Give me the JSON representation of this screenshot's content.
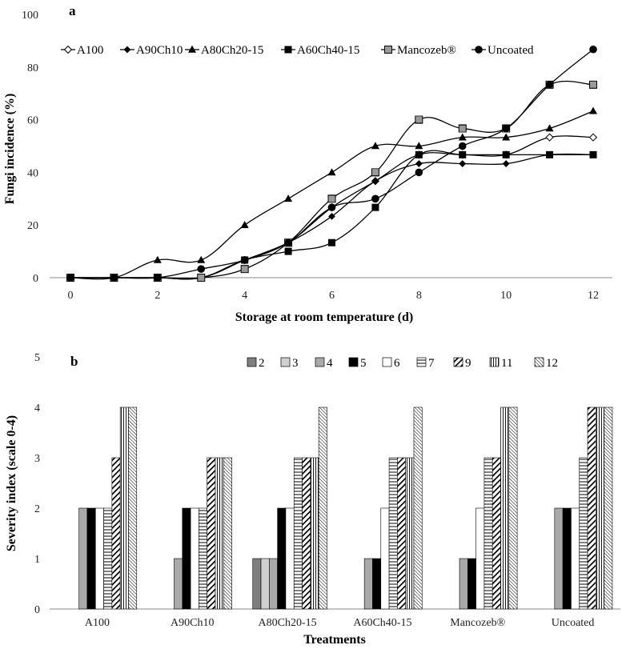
{
  "chart_data": [
    {
      "panel": "a",
      "type": "line",
      "xlabel": "Storage at room temperature (d)",
      "ylabel": "Fungi incidence (%)",
      "xlim": [
        0,
        12
      ],
      "ylim": [
        0,
        100
      ],
      "xticks": [
        0,
        2,
        4,
        6,
        8,
        10,
        12
      ],
      "yticks": [
        0,
        20,
        40,
        60,
        80,
        100
      ],
      "legend_position": "top",
      "series": [
        {
          "name": "A100",
          "marker": "open-diamond",
          "x": [
            0,
            1,
            2,
            3,
            4,
            5,
            6,
            7,
            8,
            9,
            10,
            11,
            12
          ],
          "values": [
            0,
            0,
            0,
            0,
            6.7,
            13.3,
            26.7,
            36.7,
            46.7,
            46.7,
            46.7,
            53.3,
            53.3
          ]
        },
        {
          "name": "A90Ch10",
          "marker": "filled-diamond",
          "x": [
            0,
            1,
            2,
            3,
            4,
            5,
            6,
            7,
            8,
            9,
            10,
            11,
            12
          ],
          "values": [
            0,
            0,
            0,
            0,
            6.7,
            13.3,
            23.3,
            36.7,
            43.3,
            43.3,
            43.3,
            46.7,
            46.7
          ]
        },
        {
          "name": "A80Ch20-15",
          "marker": "filled-triangle",
          "x": [
            0,
            1,
            2,
            3,
            4,
            5,
            6,
            7,
            8,
            9,
            10,
            11,
            12
          ],
          "values": [
            0,
            0,
            6.7,
            6.7,
            20,
            30,
            40,
            50,
            50,
            53.3,
            53.3,
            56.7,
            63.3
          ]
        },
        {
          "name": "A60Ch40-15",
          "marker": "filled-square",
          "x": [
            0,
            1,
            2,
            3,
            4,
            5,
            6,
            7,
            8,
            9,
            10,
            11,
            12
          ],
          "values": [
            0,
            0,
            0,
            0,
            6.7,
            10,
            13.3,
            26.7,
            46.7,
            46.7,
            46.7,
            46.7,
            46.7
          ]
        },
        {
          "name": "Mancozeb®",
          "marker": "hatched-square",
          "x": [
            0,
            1,
            2,
            3,
            4,
            5,
            6,
            7,
            8,
            9,
            10,
            11,
            12
          ],
          "values": [
            0,
            0,
            0,
            0,
            3.3,
            13.3,
            30,
            40,
            60,
            56.7,
            56.7,
            73.3,
            73.3
          ]
        },
        {
          "name": "Uncoated",
          "marker": "filled-circle",
          "x": [
            0,
            1,
            2,
            3,
            4,
            5,
            6,
            7,
            8,
            9,
            10,
            11,
            12
          ],
          "values": [
            0,
            0,
            0,
            3.3,
            6.7,
            13.3,
            26.7,
            30,
            40,
            50,
            56.7,
            73.3,
            86.7
          ]
        }
      ]
    },
    {
      "panel": "b",
      "type": "bar",
      "xlabel": "Treatments",
      "ylabel": "Severity index (scale 0-4)",
      "ylim": [
        0,
        5
      ],
      "yticks": [
        0,
        1,
        2,
        3,
        4,
        5
      ],
      "legend_position": "top-right",
      "categories": [
        "A100",
        "A90Ch10",
        "A80Ch20-15",
        "A60Ch40-15",
        "Mancozeb®",
        "Uncoated"
      ],
      "series": [
        {
          "name": "2",
          "fill": "darkgray",
          "values": [
            0,
            0,
            1,
            0,
            0,
            0
          ]
        },
        {
          "name": "3",
          "fill": "lightgray",
          "values": [
            0,
            0,
            1,
            0,
            0,
            0
          ]
        },
        {
          "name": "4",
          "fill": "gray",
          "values": [
            2,
            1,
            1,
            1,
            1,
            2
          ]
        },
        {
          "name": "5",
          "fill": "black",
          "values": [
            2,
            2,
            2,
            1,
            1,
            2
          ]
        },
        {
          "name": "6",
          "fill": "white",
          "values": [
            2,
            2,
            2,
            2,
            2,
            2
          ]
        },
        {
          "name": "7",
          "fill": "hlines",
          "values": [
            2,
            2,
            3,
            3,
            3,
            3
          ]
        },
        {
          "name": "9",
          "fill": "diag-bold",
          "values": [
            3,
            3,
            3,
            3,
            3,
            4
          ]
        },
        {
          "name": "11",
          "fill": "vlines",
          "values": [
            4,
            3,
            3,
            3,
            4,
            4
          ]
        },
        {
          "name": "12",
          "fill": "diag-fine",
          "values": [
            4,
            3,
            4,
            4,
            4,
            4
          ]
        }
      ]
    }
  ]
}
